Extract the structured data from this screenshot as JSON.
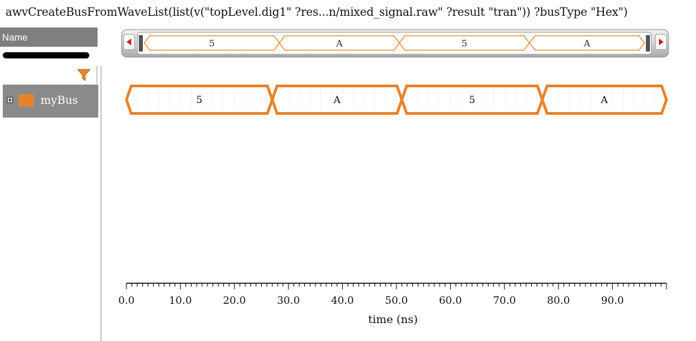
{
  "window": {
    "title": "awvCreateBusFromWaveList(list(v(\"topLevel.dig1\" ?res...n/mixed_signal.raw\" ?result \"tran\")) ?busType \"Hex\")"
  },
  "sidebar": {
    "header": "Name",
    "filter_icon": "funnel-icon",
    "signals": [
      {
        "name": "myBus",
        "color": "#e8822a"
      }
    ]
  },
  "bus": {
    "segments": [
      {
        "value": "5",
        "start": 0,
        "end": 27
      },
      {
        "value": "A",
        "start": 27,
        "end": 51
      },
      {
        "value": "5",
        "start": 51,
        "end": 77
      },
      {
        "value": "A",
        "start": 77,
        "end": 100
      }
    ],
    "range": [
      0,
      100
    ],
    "color": "#e8822a"
  },
  "overview": {
    "segments": [
      "5",
      "A",
      "5",
      "A"
    ]
  },
  "axis": {
    "label": "time (ns)",
    "ticks": [
      "0.0",
      "10.0",
      "20.0",
      "30.0",
      "40.0",
      "50.0",
      "60.0",
      "70.0",
      "80.0",
      "90.0"
    ]
  }
}
